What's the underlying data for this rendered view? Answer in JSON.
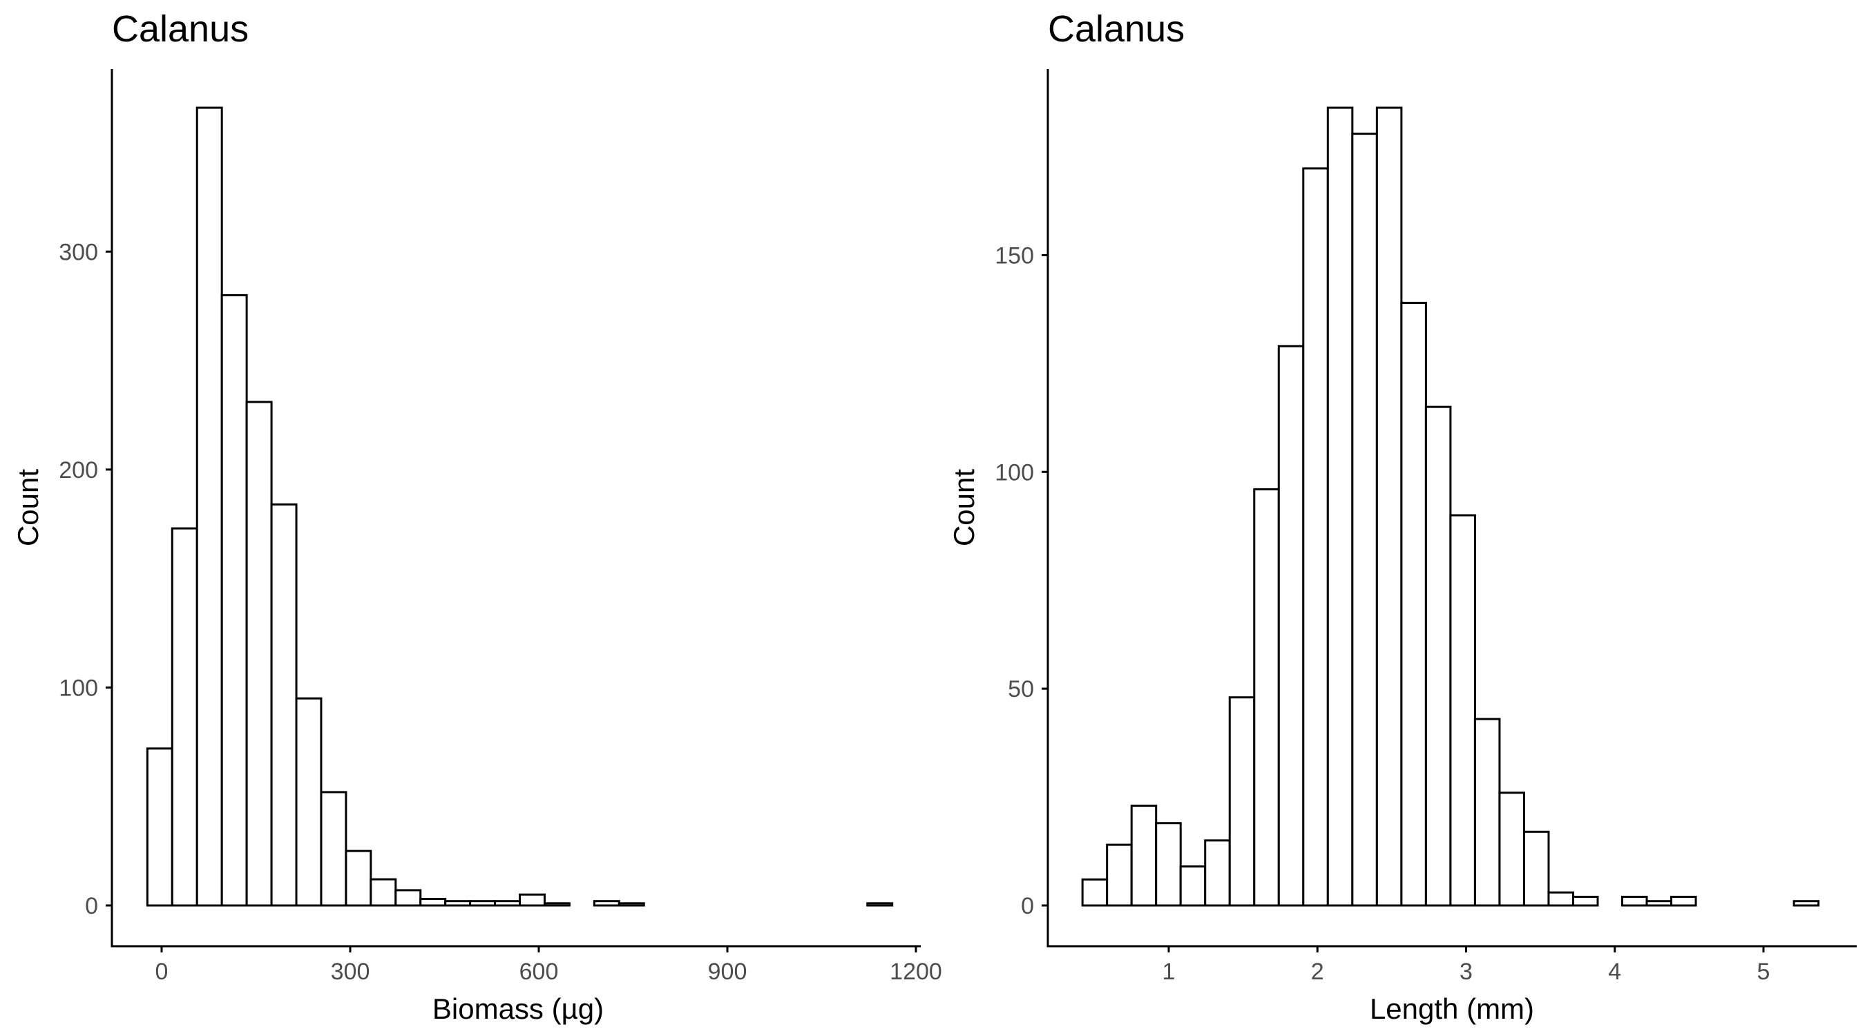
{
  "chart_data": [
    {
      "type": "bar",
      "title": "Calanus",
      "xlabel": "Biomass (µg)",
      "ylabel": "Count",
      "xlim": [
        -20,
        1155
      ],
      "ylim": [
        0,
        366
      ],
      "xticks": [
        0,
        300,
        600,
        900,
        1200
      ],
      "xtick_labels": [
        "0",
        "300",
        "600",
        "900",
        "1200"
      ],
      "yticks": [
        0,
        100,
        200,
        300
      ],
      "ytick_labels": [
        "0",
        "100",
        "200",
        "300"
      ],
      "bin_width": 39.5,
      "bin_starts": [
        -22.7,
        16.8,
        56.3,
        95.8,
        135.3,
        174.8,
        214.3,
        253.8,
        293.3,
        332.8,
        372.3,
        411.8,
        451.3,
        490.8,
        530.3,
        569.8,
        609.3,
        648.8,
        688.3,
        727.8,
        767.3,
        806.8,
        846.3,
        885.8,
        925.3,
        964.8,
        1004.3,
        1043.8,
        1083.3,
        1122.8
      ],
      "values": [
        72,
        173,
        366,
        280,
        231,
        184,
        95,
        52,
        25,
        12,
        7,
        3,
        2,
        2,
        2,
        5,
        1,
        0,
        2,
        1,
        0,
        0,
        0,
        0,
        0,
        0,
        0,
        0,
        0,
        1
      ],
      "grid": false,
      "legend": "none"
    },
    {
      "type": "bar",
      "title": "Calanus",
      "xlabel": "Length (mm)",
      "ylabel": "Count",
      "xlim": [
        0.42,
        5.38
      ],
      "ylim": [
        0,
        184
      ],
      "xticks": [
        1,
        2,
        3,
        4,
        5
      ],
      "xtick_labels": [
        "1",
        "2",
        "3",
        "4",
        "5"
      ],
      "yticks": [
        0,
        50,
        100,
        150
      ],
      "ytick_labels": [
        "0",
        "50",
        "100",
        "150"
      ],
      "bin_width": 0.165,
      "bin_starts": [
        0.42,
        0.585,
        0.75,
        0.915,
        1.08,
        1.245,
        1.41,
        1.575,
        1.74,
        1.905,
        2.07,
        2.235,
        2.4,
        2.565,
        2.73,
        2.895,
        3.06,
        3.225,
        3.39,
        3.555,
        3.72,
        3.885,
        4.05,
        4.215,
        4.38,
        4.545,
        4.71,
        4.875,
        5.04,
        5.205
      ],
      "values": [
        6,
        14,
        23,
        19,
        9,
        15,
        48,
        96,
        129,
        170,
        184,
        178,
        184,
        139,
        115,
        90,
        43,
        26,
        17,
        3,
        2,
        0,
        2,
        1,
        2,
        0,
        0,
        0,
        0,
        1
      ],
      "grid": false,
      "legend": "none"
    }
  ]
}
